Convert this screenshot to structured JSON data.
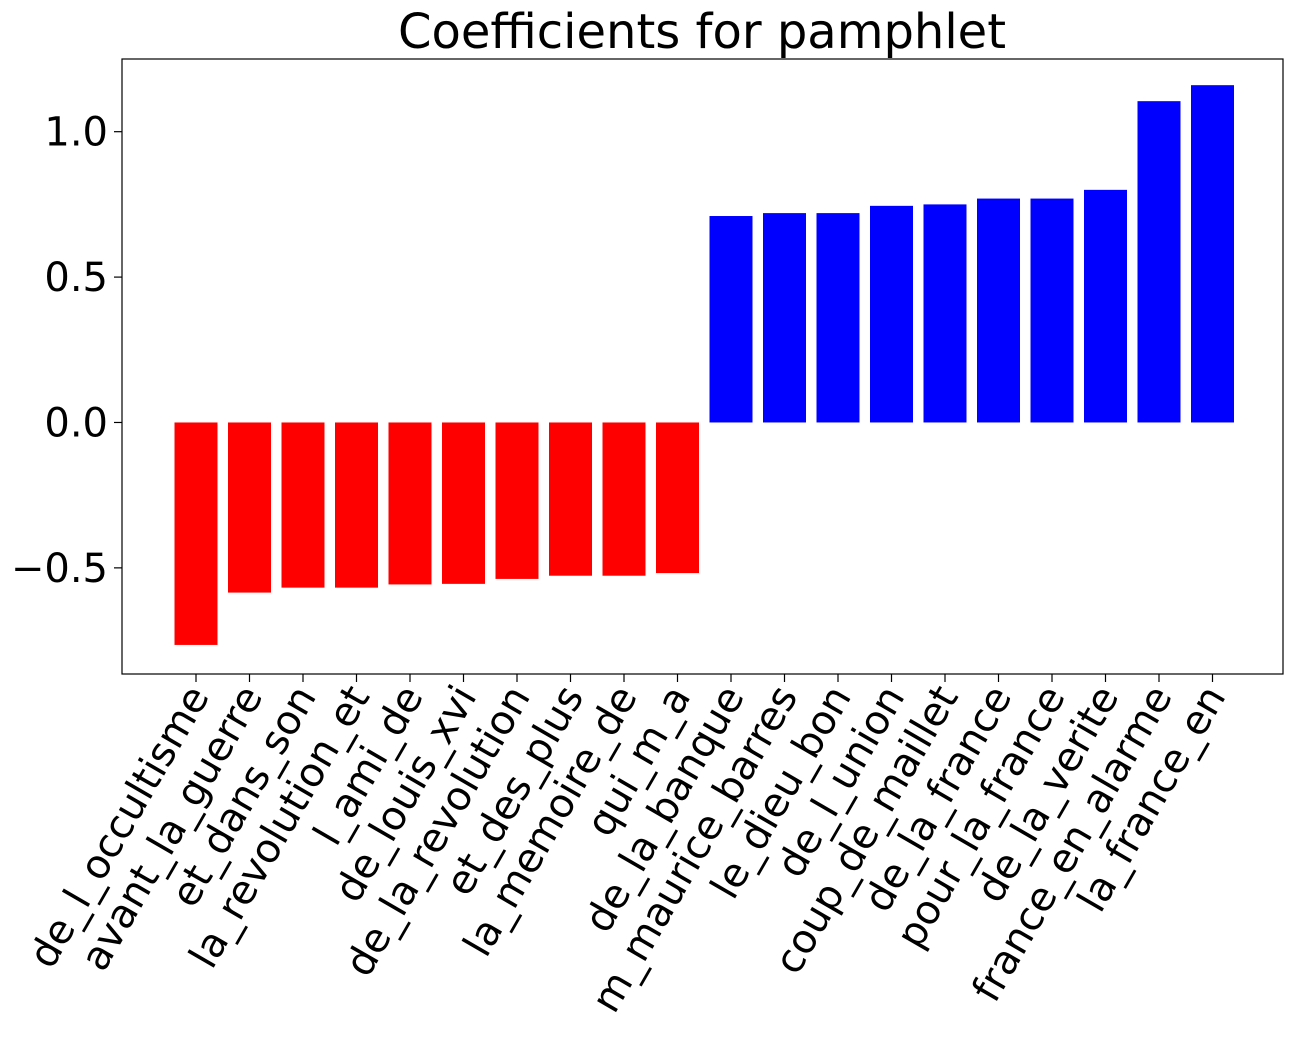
{
  "chart_data": {
    "type": "bar",
    "title": "Coefficients for pamphlet",
    "xlabel": "",
    "ylabel": "",
    "ylim": [
      -0.865,
      1.25
    ],
    "yticks": [
      -0.5,
      0.0,
      0.5,
      1.0
    ],
    "ytick_labels": [
      "−0.5",
      "0.0",
      "0.5",
      "1.0"
    ],
    "grid": false,
    "colors": {
      "negative": "#ff0000",
      "positive": "#0000ff"
    },
    "categories": [
      "de_l_occultisme",
      "avant_la_guerre",
      "et_dans_son",
      "la_revolution_et",
      "l_ami_de",
      "de_louis_xvi",
      "de_la_revolution",
      "et_des_plus",
      "la_memoire_de",
      "qui_m_a",
      "de_la_banque",
      "m_maurice_barres",
      "le_dieu_bon",
      "de_l_union",
      "coup_de_maillet",
      "de_la_france",
      "pour_la_france",
      "de_la_verite",
      "france_en_alarme",
      "la_france_en"
    ],
    "values": [
      -0.765,
      -0.585,
      -0.568,
      -0.568,
      -0.557,
      -0.555,
      -0.538,
      -0.527,
      -0.527,
      -0.518,
      0.71,
      0.72,
      0.72,
      0.745,
      0.75,
      0.77,
      0.77,
      0.8,
      1.105,
      1.16
    ]
  }
}
